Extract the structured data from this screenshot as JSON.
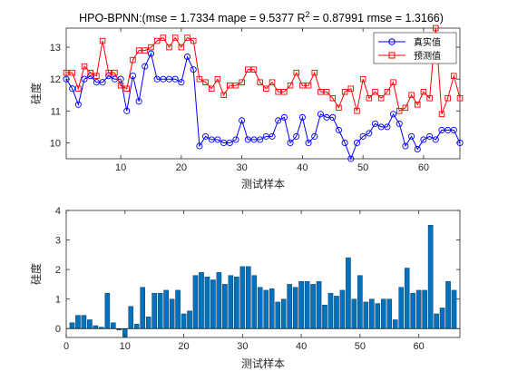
{
  "chart_data": [
    {
      "type": "line",
      "title": "HPO-BPNN:(mse = 1.7334 mape = 9.5377  R",
      "title_sup": "2",
      "title_tail": " = 0.87991 rmse = 1.3166)",
      "xlabel": "测试样本",
      "ylabel": "硅度",
      "xlim": [
        1,
        66
      ],
      "ylim": [
        9.5,
        13.6
      ],
      "xticks": [
        10,
        20,
        30,
        40,
        50,
        60
      ],
      "yticks": [
        10,
        11,
        12,
        13
      ],
      "grid": false,
      "legend_position": "top-right",
      "x": [
        1,
        2,
        3,
        4,
        5,
        6,
        7,
        8,
        9,
        10,
        11,
        12,
        13,
        14,
        15,
        16,
        17,
        18,
        19,
        20,
        21,
        22,
        23,
        24,
        25,
        26,
        27,
        28,
        29,
        30,
        31,
        32,
        33,
        34,
        35,
        36,
        37,
        38,
        39,
        40,
        41,
        42,
        43,
        44,
        45,
        46,
        47,
        48,
        49,
        50,
        51,
        52,
        53,
        54,
        55,
        56,
        57,
        58,
        59,
        60,
        61,
        62,
        63,
        64,
        65,
        66
      ],
      "series": [
        {
          "name": "真实值",
          "color": "#0000ff",
          "marker": "circle",
          "values": [
            12.0,
            11.7,
            11.2,
            12.0,
            12.1,
            11.9,
            11.9,
            12.1,
            12.0,
            12.0,
            11.0,
            12.1,
            11.3,
            12.4,
            12.8,
            12.0,
            12.0,
            12.0,
            12.0,
            11.9,
            12.7,
            12.3,
            9.9,
            10.2,
            10.1,
            10.1,
            10.0,
            10.0,
            10.1,
            10.7,
            10.1,
            10.1,
            10.1,
            10.2,
            10.2,
            10.7,
            10.8,
            10.0,
            10.2,
            10.8,
            10.0,
            10.2,
            10.9,
            10.8,
            10.8,
            10.4,
            10.0,
            9.5,
            10.0,
            10.2,
            10.3,
            10.6,
            10.5,
            10.5,
            10.9,
            10.6,
            9.9,
            10.2,
            9.8,
            10.1,
            10.2,
            10.1,
            10.4,
            10.4,
            10.4,
            10.0
          ]
        },
        {
          "name": "预测值",
          "color": "#ff0000",
          "marker": "square",
          "values": [
            12.2,
            12.2,
            11.7,
            12.4,
            12.2,
            12.1,
            13.2,
            12.2,
            12.2,
            11.8,
            11.7,
            12.6,
            12.9,
            12.9,
            13.0,
            13.2,
            13.3,
            13.0,
            13.3,
            13.0,
            13.3,
            13.2,
            12.0,
            11.9,
            11.7,
            12.0,
            11.5,
            11.8,
            11.8,
            11.9,
            12.3,
            12.3,
            11.9,
            11.7,
            11.9,
            11.6,
            11.6,
            11.8,
            12.2,
            11.8,
            11.8,
            12.2,
            11.6,
            11.6,
            11.4,
            11.1,
            11.6,
            11.7,
            11.0,
            12.0,
            11.4,
            11.6,
            11.4,
            11.6,
            11.9,
            11.0,
            11.1,
            11.5,
            11.2,
            11.6,
            11.4,
            13.6,
            10.9,
            11.4,
            12.1,
            11.4
          ]
        }
      ]
    },
    {
      "type": "bar",
      "title": "",
      "xlabel": "测试样本",
      "ylabel": "硅度",
      "xlim": [
        0,
        67
      ],
      "ylim": [
        -0.3,
        4
      ],
      "xticks": [
        0,
        10,
        20,
        30,
        40,
        50,
        60
      ],
      "yticks": [
        0,
        1,
        2,
        3,
        4
      ],
      "grid": false,
      "color": "#0072bd",
      "x": [
        1,
        2,
        3,
        4,
        5,
        6,
        7,
        8,
        9,
        10,
        11,
        12,
        13,
        14,
        15,
        16,
        17,
        18,
        19,
        20,
        21,
        22,
        23,
        24,
        25,
        26,
        27,
        28,
        29,
        30,
        31,
        32,
        33,
        34,
        35,
        36,
        37,
        38,
        39,
        40,
        41,
        42,
        43,
        44,
        45,
        46,
        47,
        48,
        49,
        50,
        51,
        52,
        53,
        54,
        55,
        56,
        57,
        58,
        59,
        60,
        61,
        62,
        63,
        64,
        65,
        66
      ],
      "values": [
        0.2,
        0.45,
        0.45,
        0.3,
        0.1,
        0.05,
        1.2,
        0.2,
        -0.05,
        -0.3,
        0.75,
        0.15,
        1.4,
        0.4,
        1.2,
        1.2,
        1.3,
        1.0,
        1.3,
        0.5,
        0.6,
        1.8,
        1.9,
        1.75,
        1.65,
        1.9,
        1.5,
        1.8,
        1.75,
        2.1,
        2.1,
        1.8,
        1.4,
        1.3,
        1.35,
        0.9,
        1.0,
        1.5,
        1.4,
        1.6,
        1.6,
        1.5,
        1.6,
        0.8,
        1.2,
        1.1,
        1.3,
        2.4,
        1.0,
        1.8,
        0.9,
        1.0,
        0.85,
        1.0,
        1.0,
        0.3,
        1.4,
        2.05,
        1.2,
        1.3,
        1.3,
        3.5,
        0.5,
        0.7,
        1.6,
        1.3
      ]
    }
  ]
}
